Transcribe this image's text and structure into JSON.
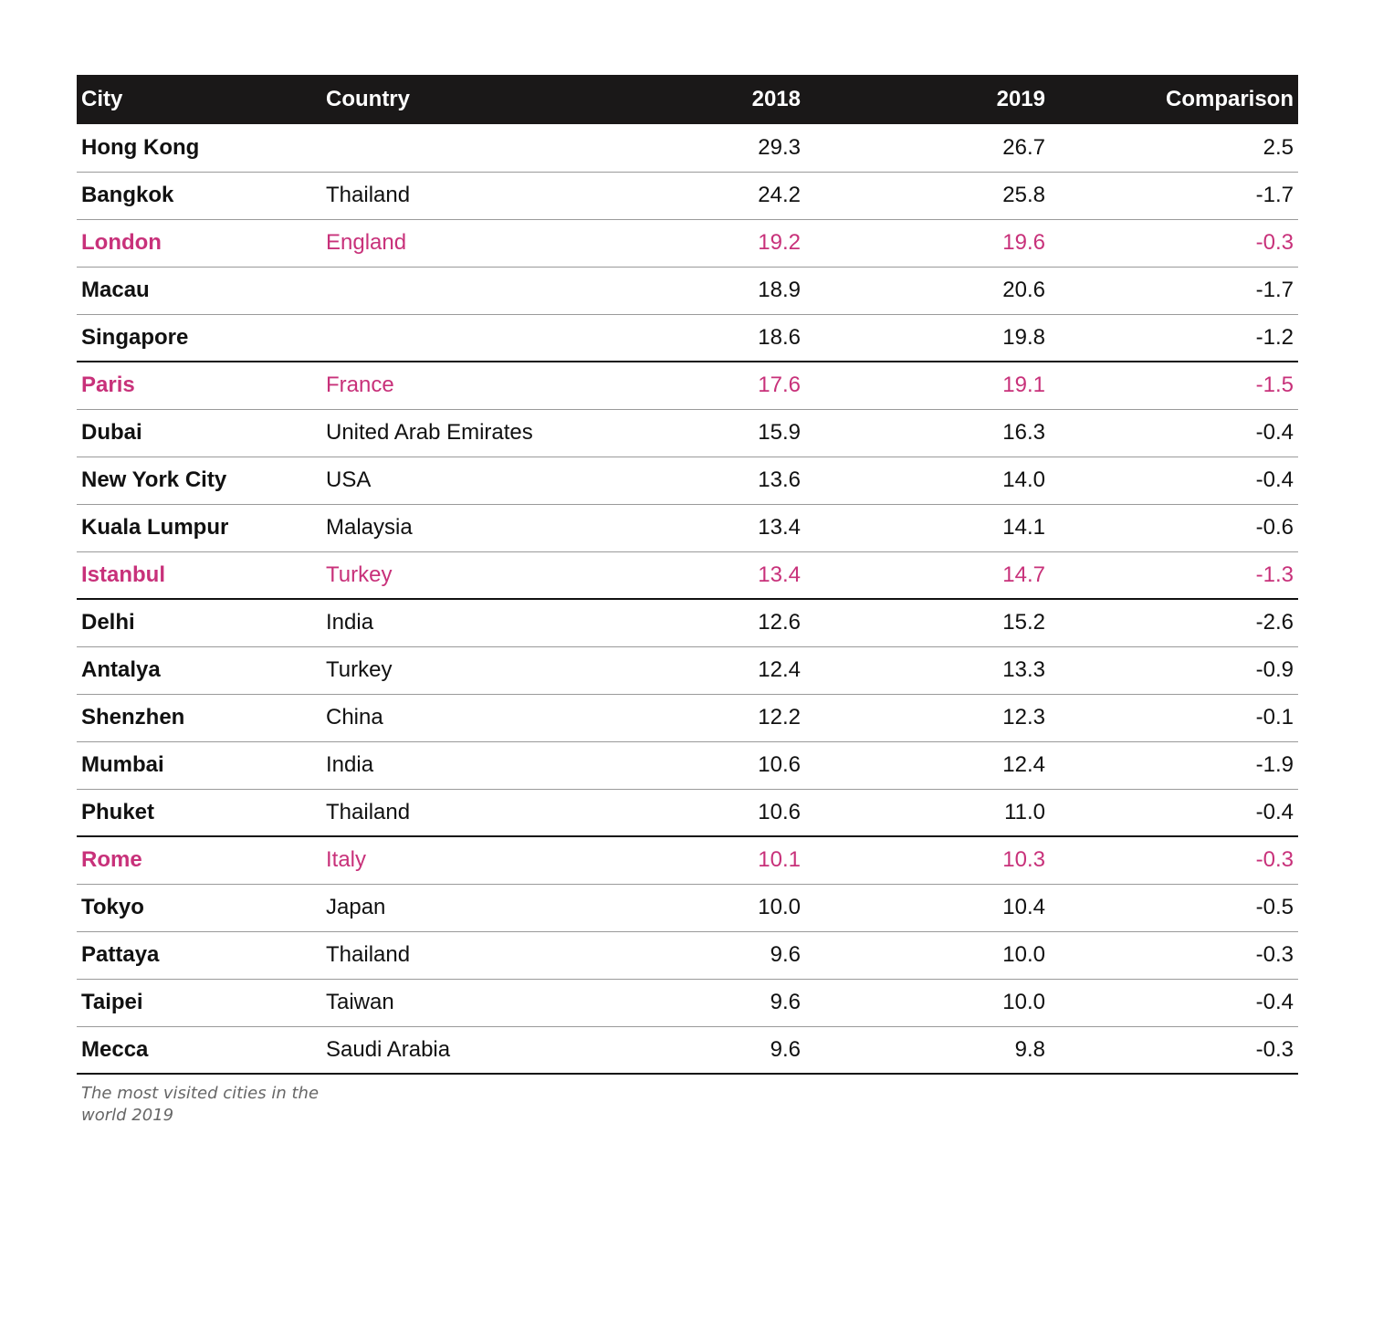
{
  "chart_data": {
    "type": "table",
    "columns": [
      "City",
      "Country",
      "2018",
      "2019",
      "Comparison"
    ],
    "highlight_color": "#c8317a",
    "header_background": "#1a1818",
    "rows": [
      {
        "city": "Hong Kong",
        "country": "",
        "y2018": "29.3",
        "y2019": "26.7",
        "comparison": "2.5",
        "highlight": false
      },
      {
        "city": "Bangkok",
        "country": "Thailand",
        "y2018": "24.2",
        "y2019": "25.8",
        "comparison": "-1.7",
        "highlight": false
      },
      {
        "city": "London",
        "country": "England",
        "y2018": "19.2",
        "y2019": "19.6",
        "comparison": "-0.3",
        "highlight": true
      },
      {
        "city": "Macau",
        "country": "",
        "y2018": "18.9",
        "y2019": "20.6",
        "comparison": "-1.7",
        "highlight": false
      },
      {
        "city": "Singapore",
        "country": "",
        "y2018": "18.6",
        "y2019": "19.8",
        "comparison": "-1.2",
        "highlight": false
      },
      {
        "city": "Paris",
        "country": "France",
        "y2018": "17.6",
        "y2019": "19.1",
        "comparison": "-1.5",
        "highlight": true
      },
      {
        "city": "Dubai",
        "country": "United Arab Emirates",
        "y2018": "15.9",
        "y2019": "16.3",
        "comparison": "-0.4",
        "highlight": false
      },
      {
        "city": "New York City",
        "country": "USA",
        "y2018": "13.6",
        "y2019": "14.0",
        "comparison": "-0.4",
        "highlight": false
      },
      {
        "city": "Kuala Lumpur",
        "country": "Malaysia",
        "y2018": "13.4",
        "y2019": "14.1",
        "comparison": "-0.6",
        "highlight": false
      },
      {
        "city": "Istanbul",
        "country": "Turkey",
        "y2018": "13.4",
        "y2019": "14.7",
        "comparison": "-1.3",
        "highlight": true
      },
      {
        "city": "Delhi",
        "country": "India",
        "y2018": "12.6",
        "y2019": "15.2",
        "comparison": "-2.6",
        "highlight": false
      },
      {
        "city": "Antalya",
        "country": "Turkey",
        "y2018": "12.4",
        "y2019": "13.3",
        "comparison": "-0.9",
        "highlight": false
      },
      {
        "city": "Shenzhen",
        "country": "China",
        "y2018": "12.2",
        "y2019": "12.3",
        "comparison": "-0.1",
        "highlight": false
      },
      {
        "city": "Mumbai",
        "country": "India",
        "y2018": "10.6",
        "y2019": "12.4",
        "comparison": "-1.9",
        "highlight": false
      },
      {
        "city": "Phuket",
        "country": "Thailand",
        "y2018": "10.6",
        "y2019": "11.0",
        "comparison": "-0.4",
        "highlight": false
      },
      {
        "city": "Rome",
        "country": "Italy",
        "y2018": "10.1",
        "y2019": "10.3",
        "comparison": "-0.3",
        "highlight": true
      },
      {
        "city": "Tokyo",
        "country": "Japan",
        "y2018": "10.0",
        "y2019": "10.4",
        "comparison": "-0.5",
        "highlight": false
      },
      {
        "city": "Pattaya",
        "country": "Thailand",
        "y2018": "9.6",
        "y2019": "10.0",
        "comparison": "-0.3",
        "highlight": false
      },
      {
        "city": "Taipei",
        "country": "Taiwan",
        "y2018": "9.6",
        "y2019": "10.0",
        "comparison": "-0.4",
        "highlight": false
      },
      {
        "city": "Mecca",
        "country": "Saudi Arabia",
        "y2018": "9.6",
        "y2019": "9.8",
        "comparison": "-0.3",
        "highlight": false
      }
    ],
    "caption": "The most visited cities in the world 2019"
  }
}
